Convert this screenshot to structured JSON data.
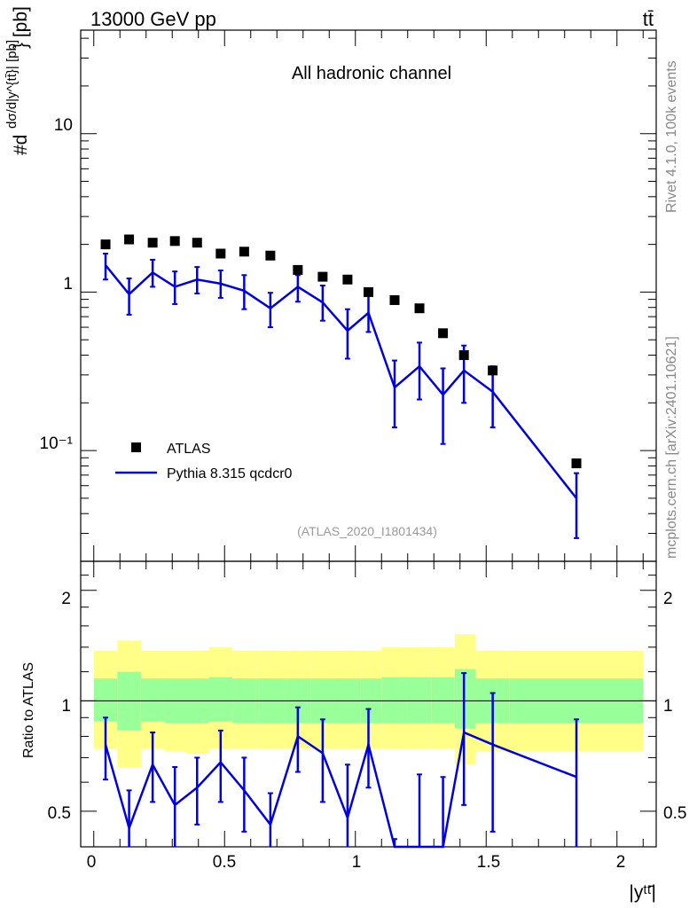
{
  "header": {
    "energy_label": "13000 GeV pp",
    "process_label": "tt̄"
  },
  "side_labels": {
    "rivet": "Rivet 4.1.0,  100k events",
    "mcplots": "mcplots.cern.ch [arXiv:2401.10621]"
  },
  "main_plot": {
    "title": "All hadronic channel",
    "ylabel_prefix": "#d",
    "ylabel_unit": "} [pb]",
    "analysis_id": "(ATLAS_2020_I1801434)",
    "ytick_labels": [
      "10⁻¹",
      "1",
      "10"
    ]
  },
  "ratio_plot": {
    "ylabel": "Ratio to ATLAS",
    "ytick_labels": [
      "0.5",
      "1",
      "2"
    ]
  },
  "x_axis": {
    "label": "|yᵗᵗ̄|",
    "tick_labels": [
      "0",
      "0.5",
      "1",
      "1.5",
      "2"
    ]
  },
  "legend": {
    "data_label": "ATLAS",
    "mc_label": "Pythia 8.315 qcdcr0"
  },
  "colors": {
    "data": "#000000",
    "mc": "#0000dd",
    "band_outer": "#ffff88",
    "band_inner": "#99ff99",
    "axis": "#000000",
    "side_text": "#888888",
    "analysis_text": "#999999"
  },
  "chart_data": {
    "type": "line",
    "title": "All hadronic channel",
    "xlabel": "|y^{tt̄}|",
    "ylabel": "dσ/d|y^{tt̄}| [pb]",
    "yscale": "log",
    "xlim": [
      -0.05,
      2.15
    ],
    "ylim": [
      0.02,
      45
    ],
    "bin_edges": [
      0.0,
      0.09,
      0.18,
      0.27,
      0.35,
      0.44,
      0.53,
      0.62,
      0.73,
      0.83,
      0.92,
      1.02,
      1.1,
      1.2,
      1.29,
      1.38,
      1.46,
      1.59,
      2.1
    ],
    "series": [
      {
        "name": "ATLAS",
        "x": [
          0.045,
          0.135,
          0.225,
          0.31,
          0.395,
          0.485,
          0.575,
          0.675,
          0.78,
          0.875,
          0.97,
          1.05,
          1.15,
          1.245,
          1.335,
          1.415,
          1.525,
          1.845
        ],
        "values": [
          2.0,
          2.15,
          2.05,
          2.1,
          2.05,
          1.75,
          1.8,
          1.7,
          1.38,
          1.25,
          1.2,
          1.0,
          0.89,
          0.79,
          0.55,
          0.4,
          0.32,
          0.083
        ]
      },
      {
        "name": "Pythia 8.315 qcdcr0",
        "x": [
          0.045,
          0.135,
          0.225,
          0.31,
          0.395,
          0.485,
          0.575,
          0.675,
          0.78,
          0.875,
          0.97,
          1.05,
          1.15,
          1.245,
          1.335,
          1.415,
          1.525,
          1.845
        ],
        "values": [
          1.48,
          0.97,
          1.33,
          1.08,
          1.2,
          1.13,
          1.02,
          0.79,
          1.08,
          0.86,
          0.57,
          0.74,
          0.25,
          0.34,
          0.225,
          0.32,
          0.235,
          0.05
        ],
        "err_low": [
          1.2,
          0.72,
          1.08,
          0.84,
          0.98,
          0.92,
          0.78,
          0.6,
          0.87,
          0.66,
          0.38,
          0.56,
          0.14,
          0.21,
          0.11,
          0.2,
          0.14,
          0.028
        ],
        "err_high": [
          1.75,
          1.22,
          1.6,
          1.35,
          1.44,
          1.37,
          1.28,
          0.99,
          1.28,
          1.1,
          0.78,
          0.95,
          0.37,
          0.48,
          0.33,
          0.46,
          0.34,
          0.072
        ]
      }
    ],
    "ratio": {
      "ylabel": "Ratio to ATLAS",
      "ylim": [
        0.4,
        2.4
      ],
      "values": [
        0.76,
        0.45,
        0.67,
        0.52,
        0.58,
        0.68,
        0.57,
        0.46,
        0.8,
        0.72,
        0.48,
        0.76,
        0.28,
        0.4,
        0.37,
        0.82,
        0.76,
        0.62
      ],
      "err_low": [
        0.61,
        0.34,
        0.53,
        0.37,
        0.46,
        0.53,
        0.44,
        0.35,
        0.64,
        0.53,
        0.32,
        0.58,
        0.16,
        0.27,
        0.2,
        0.52,
        0.44,
        0.33
      ],
      "err_high": [
        0.9,
        0.57,
        0.82,
        0.66,
        0.7,
        0.83,
        0.7,
        0.56,
        0.96,
        0.89,
        0.67,
        0.95,
        0.42,
        0.63,
        0.62,
        1.19,
        1.05,
        0.89
      ],
      "band_outer_low": [
        0.74,
        0.66,
        0.74,
        0.73,
        0.72,
        0.74,
        0.74,
        0.74,
        0.74,
        0.74,
        0.74,
        0.74,
        0.74,
        0.74,
        0.74,
        0.67,
        0.73,
        0.73
      ],
      "band_outer_high": [
        1.37,
        1.46,
        1.37,
        1.37,
        1.37,
        1.4,
        1.37,
        1.37,
        1.37,
        1.37,
        1.37,
        1.37,
        1.4,
        1.4,
        1.4,
        1.52,
        1.37,
        1.37
      ],
      "band_inner_low": [
        0.88,
        0.83,
        0.88,
        0.87,
        0.87,
        0.88,
        0.87,
        0.87,
        0.87,
        0.87,
        0.87,
        0.87,
        0.87,
        0.87,
        0.87,
        0.84,
        0.87,
        0.87
      ],
      "band_inner_high": [
        1.15,
        1.2,
        1.15,
        1.15,
        1.15,
        1.16,
        1.15,
        1.15,
        1.15,
        1.15,
        1.15,
        1.15,
        1.16,
        1.16,
        1.16,
        1.22,
        1.15,
        1.15
      ]
    }
  }
}
